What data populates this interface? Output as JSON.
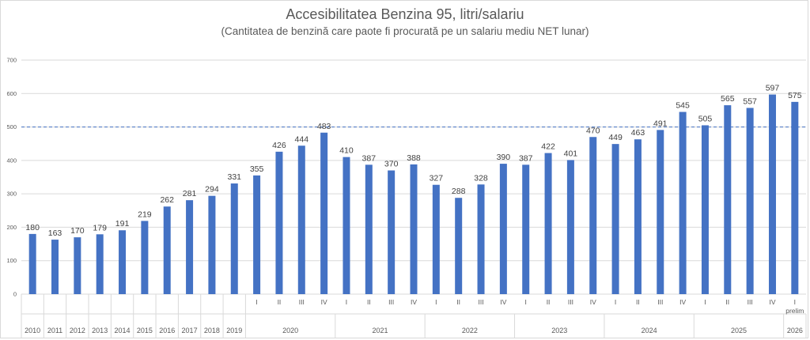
{
  "chart_data": {
    "type": "bar",
    "title": "Accesibilitatea Benzina 95, litri/salariu",
    "subtitle": "(Cantitatea de benzină care paote fi procurată pe un salariu mediu NET lunar)",
    "xlabel": "",
    "ylabel": "",
    "ylim": [
      0,
      700
    ],
    "yticks": [
      "0",
      "100",
      "200",
      "300",
      "400",
      "500",
      "600",
      "700"
    ],
    "grid": true,
    "legend": "none",
    "reference_line": {
      "value": 500,
      "style": "dashed"
    },
    "colors": {
      "bar": "#4472c4",
      "grid": "#d9d9d9",
      "reference": "#4472c4",
      "text": "#595959"
    },
    "categories": [
      {
        "sub": "",
        "group": "2010",
        "value": 180
      },
      {
        "sub": "",
        "group": "2011",
        "value": 163
      },
      {
        "sub": "",
        "group": "2012",
        "value": 170
      },
      {
        "sub": "",
        "group": "2013",
        "value": 179
      },
      {
        "sub": "",
        "group": "2014",
        "value": 191
      },
      {
        "sub": "",
        "group": "2015",
        "value": 219
      },
      {
        "sub": "",
        "group": "2016",
        "value": 262
      },
      {
        "sub": "",
        "group": "2017",
        "value": 281
      },
      {
        "sub": "",
        "group": "2018",
        "value": 294
      },
      {
        "sub": "",
        "group": "2019",
        "value": 331
      },
      {
        "sub": "I",
        "group": "2020",
        "value": 355
      },
      {
        "sub": "II",
        "group": "2020",
        "value": 426
      },
      {
        "sub": "III",
        "group": "2020",
        "value": 444
      },
      {
        "sub": "IV",
        "group": "2020",
        "value": 483
      },
      {
        "sub": "I",
        "group": "2021",
        "value": 410
      },
      {
        "sub": "II",
        "group": "2021",
        "value": 387
      },
      {
        "sub": "III",
        "group": "2021",
        "value": 370
      },
      {
        "sub": "IV",
        "group": "2021",
        "value": 388
      },
      {
        "sub": "I",
        "group": "2022",
        "value": 327
      },
      {
        "sub": "II",
        "group": "2022",
        "value": 288
      },
      {
        "sub": "III",
        "group": "2022",
        "value": 328
      },
      {
        "sub": "IV",
        "group": "2022",
        "value": 390
      },
      {
        "sub": "I",
        "group": "2023",
        "value": 387
      },
      {
        "sub": "II",
        "group": "2023",
        "value": 422
      },
      {
        "sub": "III",
        "group": "2023",
        "value": 401
      },
      {
        "sub": "IV",
        "group": "2023",
        "value": 470
      },
      {
        "sub": "I",
        "group": "2024",
        "value": 449
      },
      {
        "sub": "II",
        "group": "2024",
        "value": 463
      },
      {
        "sub": "III",
        "group": "2024",
        "value": 491
      },
      {
        "sub": "IV",
        "group": "2024",
        "value": 545
      },
      {
        "sub": "I",
        "group": "2025",
        "value": 505
      },
      {
        "sub": "II",
        "group": "2025",
        "value": 565
      },
      {
        "sub": "III",
        "group": "2025",
        "value": 557
      },
      {
        "sub": "IV",
        "group": "2025",
        "value": 597
      },
      {
        "sub": "I prelim",
        "group": "2026",
        "value": 575
      }
    ]
  }
}
